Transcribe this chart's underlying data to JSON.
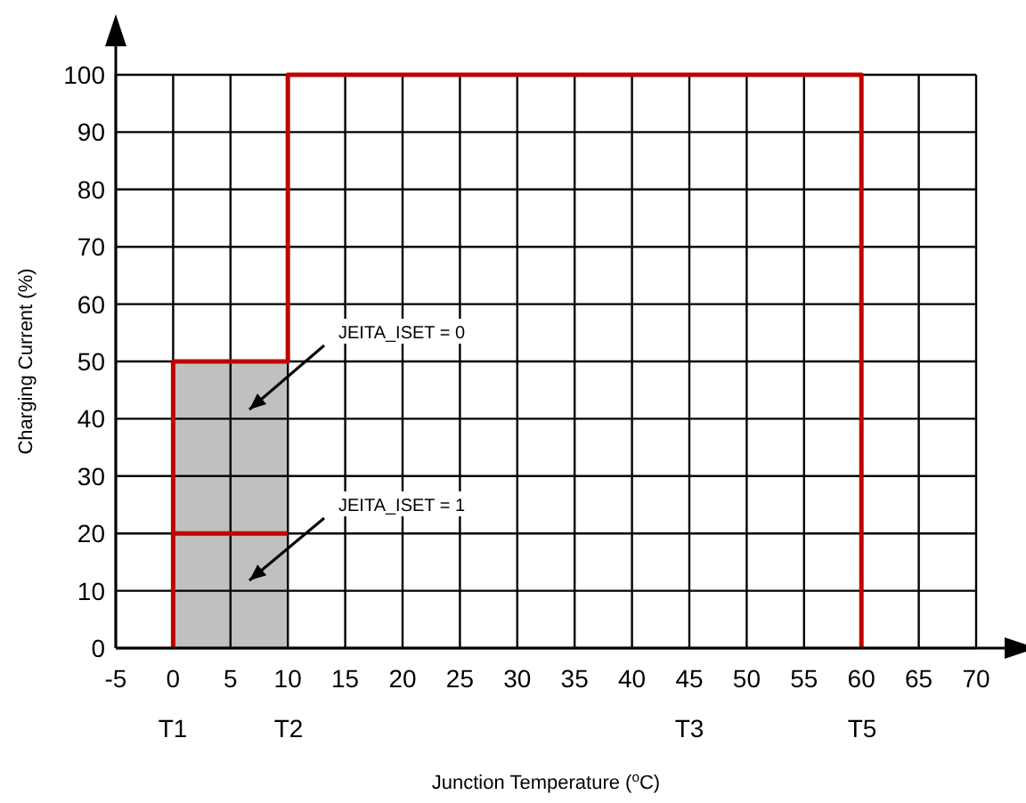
{
  "chart_data": {
    "type": "line",
    "xlabel": "Junction Temperature ($^{o}$C)",
    "ylabel": "Charging Current (%)",
    "xlim": [
      -5,
      70
    ],
    "ylim": [
      0,
      100
    ],
    "xticks": [
      -5,
      0,
      5,
      10,
      15,
      20,
      25,
      30,
      35,
      40,
      45,
      50,
      55,
      60,
      65,
      70
    ],
    "yticks": [
      0,
      10,
      20,
      30,
      40,
      50,
      60,
      70,
      80,
      90,
      100
    ],
    "grid": true,
    "marker": "none",
    "line_style": "solid",
    "series": [
      {
        "type": "area",
        "color": "#c0c0c0",
        "x": [
          0,
          10
        ],
        "values": [
          50,
          50
        ]
      },
      {
        "color": "#c00000",
        "x": [
          0,
          0,
          10,
          10,
          60,
          60
        ],
        "values": [
          0,
          50,
          50,
          100,
          100,
          0
        ]
      },
      {
        "color": "#c00000",
        "x": [
          0,
          10
        ],
        "values": [
          20,
          20
        ]
      }
    ],
    "annotations": [
      "JEITA_ISET = 0",
      "JEITA_ISET = 1",
      "T1",
      "T2",
      "T3",
      "T5"
    ]
  }
}
